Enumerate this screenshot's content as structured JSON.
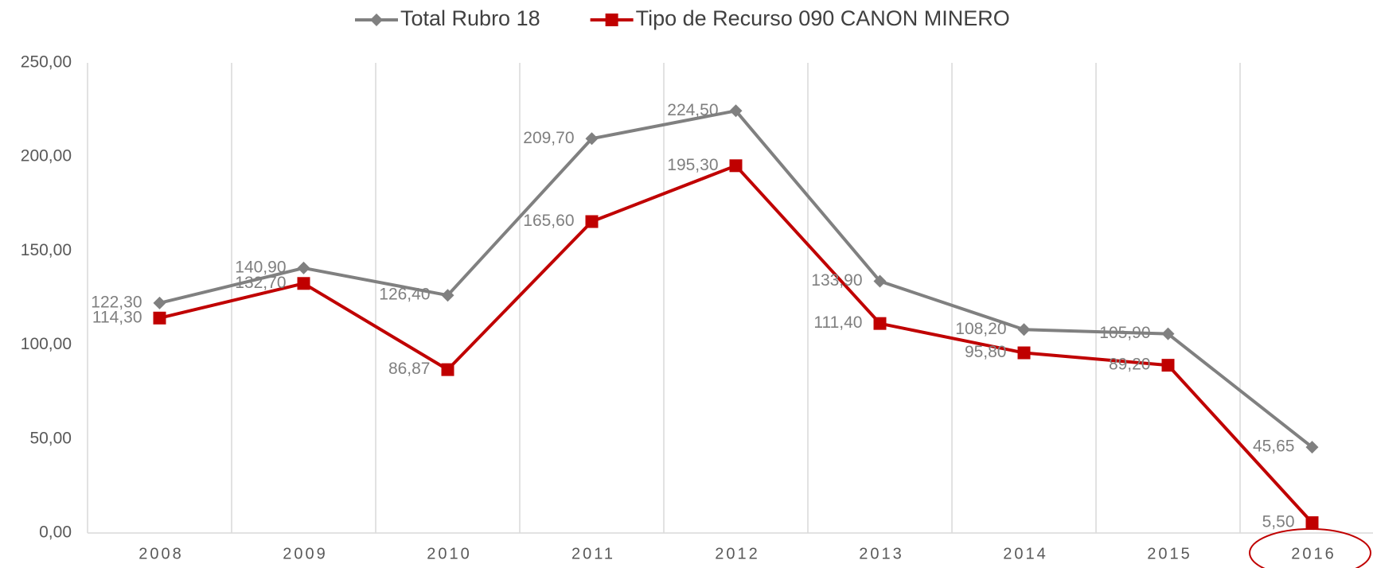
{
  "chart_data": {
    "type": "line",
    "categories": [
      "2008",
      "2009",
      "2010",
      "2011",
      "2012",
      "2013",
      "2014",
      "2015",
      "2016"
    ],
    "series": [
      {
        "name": "Total Rubro 18",
        "color": "#808080",
        "marker": "diamond",
        "values": [
          122.3,
          140.9,
          126.4,
          209.7,
          224.5,
          133.9,
          108.2,
          105.9,
          45.65
        ],
        "value_labels": [
          "122,30",
          "140,90",
          "126,40",
          "209,70",
          "224,50",
          "133,90",
          "108,20",
          "105,90",
          "45,65"
        ]
      },
      {
        "name": "Tipo de Recurso 090 CANON MINERO",
        "color": "#c00000",
        "marker": "square",
        "values": [
          114.3,
          132.7,
          86.87,
          165.6,
          195.3,
          111.4,
          95.8,
          89.2,
          5.5
        ],
        "value_labels": [
          "114,30",
          "132,70",
          "86,87",
          "165,60",
          "195,30",
          "111,40",
          "95,80",
          "89,20",
          "5,50"
        ]
      }
    ],
    "ylim": [
      0,
      250
    ],
    "yticks": [
      {
        "value": 0,
        "label": "0,00"
      },
      {
        "value": 50,
        "label": "50,00"
      },
      {
        "value": 100,
        "label": "100,00"
      },
      {
        "value": 150,
        "label": "150,00"
      },
      {
        "value": 200,
        "label": "200,00"
      },
      {
        "value": 250,
        "label": "250,00"
      }
    ],
    "legend": "top"
  }
}
